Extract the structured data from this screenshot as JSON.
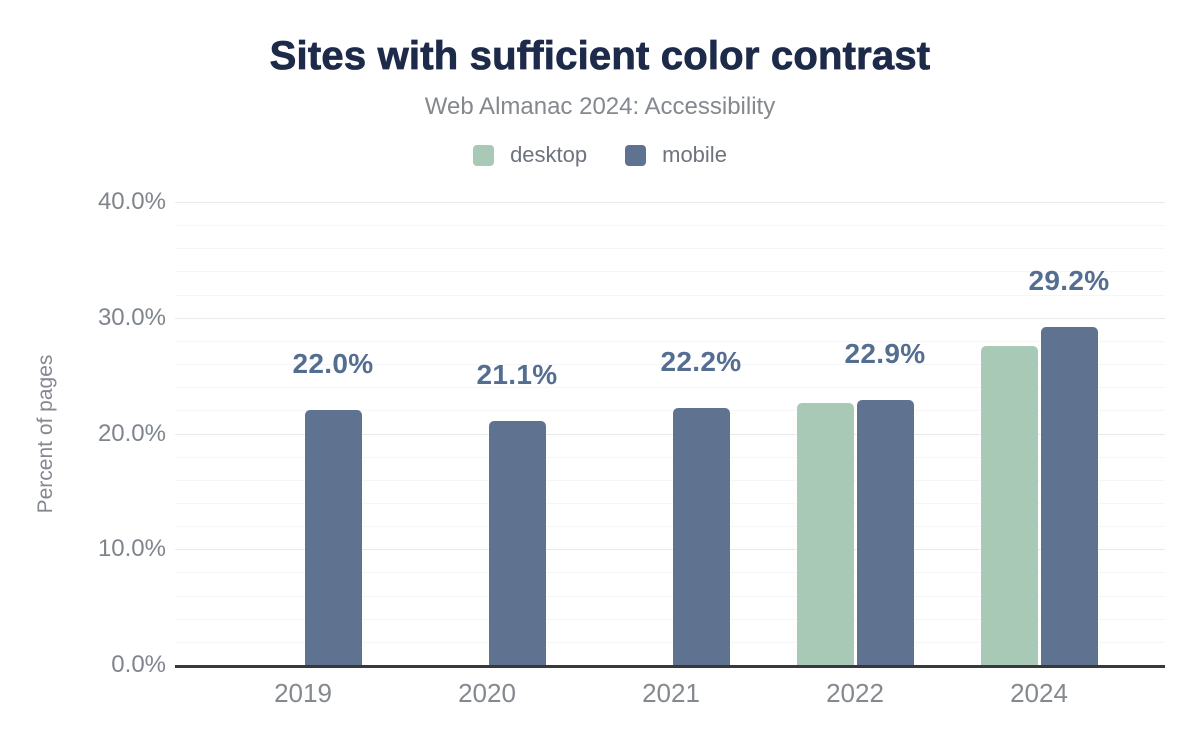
{
  "chart_data": {
    "type": "bar",
    "title": "Sites with sufficient color contrast",
    "subtitle": "Web Almanac 2024: Accessibility",
    "ylabel": "Percent of pages",
    "categories": [
      "2019",
      "2020",
      "2021",
      "2022",
      "2024"
    ],
    "series": [
      {
        "name": "desktop",
        "color": "#a8c9b6",
        "values": [
          null,
          null,
          null,
          22.6,
          27.6
        ]
      },
      {
        "name": "mobile",
        "color": "#5f7290",
        "values": [
          22.0,
          21.1,
          22.2,
          22.9,
          29.2
        ]
      }
    ],
    "data_labels": [
      "22.0%",
      "21.1%",
      "22.2%",
      "22.9%",
      "29.2%"
    ],
    "data_label_series": "mobile",
    "ylim": [
      0,
      40
    ],
    "yticks": [
      {
        "value": 0,
        "label": "0.0%"
      },
      {
        "value": 10,
        "label": "10.0%"
      },
      {
        "value": 20,
        "label": "20.0%"
      },
      {
        "value": 30,
        "label": "30.0%"
      },
      {
        "value": 40,
        "label": "40.0%"
      }
    ],
    "grid": {
      "minor_step": 2,
      "major_step": 10,
      "minor_color": "#f5f6f8",
      "major_color": "#e8eaec"
    },
    "legend_position": "top",
    "colors": {
      "title": "#1e2a4a",
      "subtitle": "#84888f",
      "tick_label": "#7f858d",
      "axis_line": "#37393c",
      "data_label": "#546e92"
    }
  }
}
